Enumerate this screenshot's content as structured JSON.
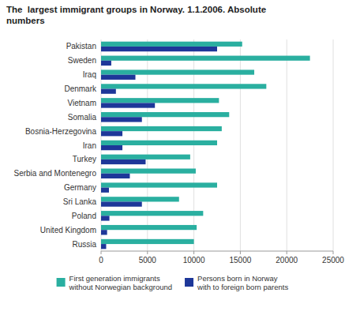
{
  "chart_data": {
    "type": "bar",
    "orientation": "horizontal",
    "title": "The  largest immigrant groups in Norway. 1.1.2006. Absolute\nnumbers",
    "categories": [
      "Pakistan",
      "Sweden",
      "Iraq",
      "Denmark",
      "Vietnam",
      "Somalia",
      "Bosnia-Herzegovina",
      "Iran",
      "Turkey",
      "Serbia and Montenegro",
      "Germany",
      "Sri Lanka",
      "Poland",
      "United Kingdom",
      "Russia"
    ],
    "series": [
      {
        "name": "First generation immigrants\nwithout Norwegian background",
        "color": "#2aafa0",
        "values": [
          15200,
          22500,
          16500,
          17800,
          12700,
          13800,
          13000,
          12500,
          9600,
          10200,
          12500,
          8400,
          11000,
          10300,
          10000
        ]
      },
      {
        "name": "Persons born in Norway\nwith to foreign born parents",
        "color": "#1e3799",
        "values": [
          12500,
          1100,
          3700,
          1600,
          5800,
          4400,
          2300,
          2300,
          4800,
          3100,
          850,
          4400,
          900,
          650,
          550
        ]
      }
    ],
    "xlim": [
      0,
      25000
    ],
    "xticks": [
      0,
      5000,
      10000,
      15000,
      20000,
      25000
    ],
    "grid": true,
    "legend": "bottom"
  }
}
